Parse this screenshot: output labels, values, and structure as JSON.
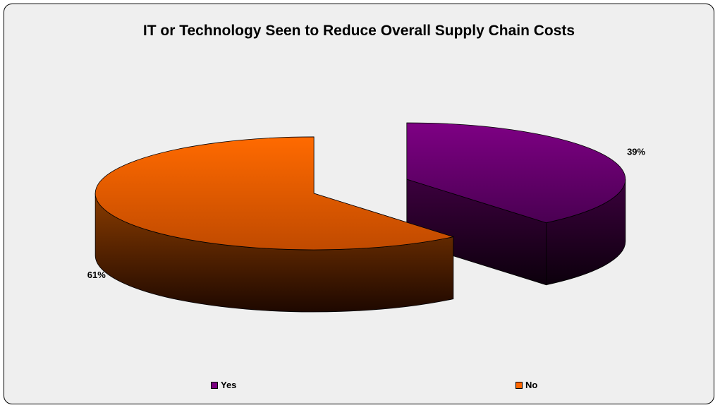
{
  "chart_data": {
    "type": "pie",
    "title": "IT or Technology Seen to Reduce Overall Supply Chain Costs",
    "categories": [
      "Yes",
      "No"
    ],
    "values": [
      39,
      61
    ],
    "data_labels": [
      "39%",
      "61%"
    ],
    "three_d": true,
    "exploded": true,
    "legend_position": "bottom",
    "colors": {
      "Yes": {
        "top": "#7a0080",
        "side": "#3a0040"
      },
      "No": {
        "top": "#ff6600",
        "side": "#8a3a00"
      }
    }
  }
}
